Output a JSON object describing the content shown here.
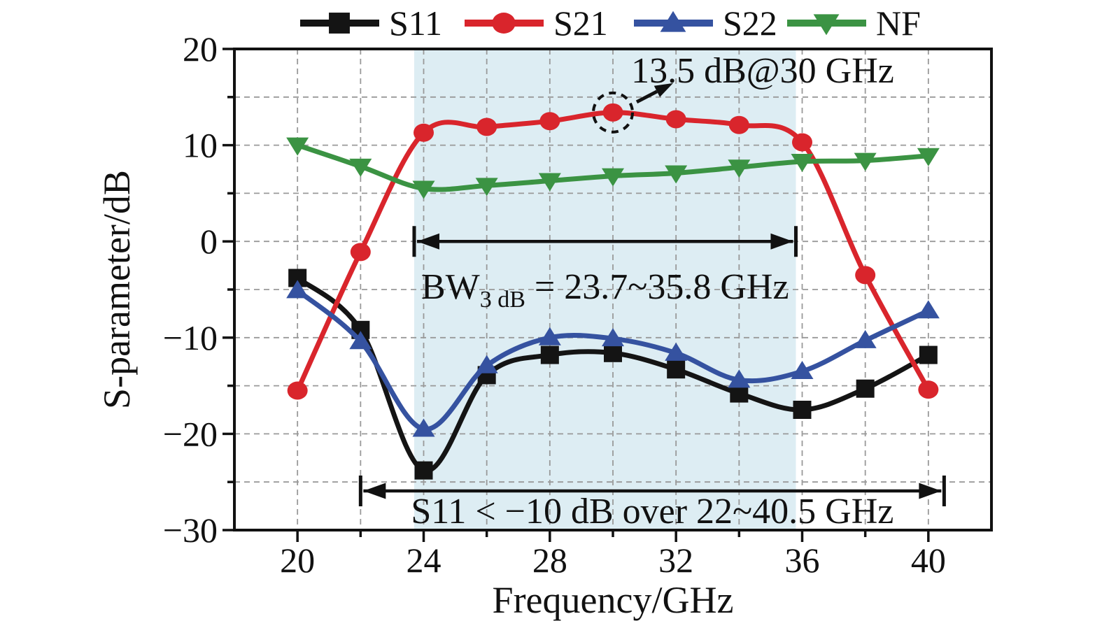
{
  "chart_data": {
    "type": "line",
    "title": "",
    "xlabel": "Frequency/GHz",
    "ylabel": "S-parameter/dB",
    "xlim": [
      18,
      42
    ],
    "ylim": [
      -30,
      20
    ],
    "x": [
      20,
      22,
      24,
      26,
      28,
      30,
      32,
      34,
      36,
      38,
      40
    ],
    "series": [
      {
        "name": "S11",
        "color": "#141414",
        "marker": "square",
        "values": [
          -3.8,
          -9.2,
          -23.8,
          -13.9,
          -11.8,
          -11.6,
          -13.3,
          -15.8,
          -17.5,
          -15.3,
          -11.8
        ]
      },
      {
        "name": "S21",
        "color": "#d9252c",
        "marker": "circle",
        "values": [
          -15.5,
          -1.1,
          11.3,
          11.9,
          12.5,
          13.4,
          12.7,
          12.1,
          10.3,
          -3.5,
          -15.4
        ]
      },
      {
        "name": "S22",
        "color": "#3552a0",
        "marker": "triangle-up",
        "values": [
          -5.1,
          -10.4,
          -19.5,
          -12.9,
          -10.0,
          -10.1,
          -11.6,
          -14.4,
          -13.5,
          -10.3,
          -7.2
        ]
      },
      {
        "name": "NF",
        "color": "#3b9343",
        "marker": "triangle-down",
        "values": [
          10.0,
          7.8,
          5.5,
          5.8,
          6.3,
          6.8,
          7.1,
          7.7,
          8.3,
          8.4,
          8.9
        ]
      }
    ],
    "x_major_ticks": [
      20,
      24,
      28,
      32,
      36,
      40
    ],
    "x_tick_labels": [
      "20",
      "24",
      "28",
      "32",
      "36",
      "40"
    ],
    "x_minor_ticks": [
      22,
      26,
      30,
      34,
      38
    ],
    "y_major_ticks": [
      20,
      10,
      0,
      -10,
      -20,
      -30
    ],
    "y_tick_labels": [
      "20",
      "10",
      "0",
      "−10",
      "−20",
      "−30"
    ],
    "y_minor_ticks": [
      15,
      5,
      -5,
      -15,
      -25
    ],
    "grid": {
      "x_step": 2,
      "y_step": 5,
      "color": "#999999",
      "style": "dashed"
    },
    "highlight_band": {
      "x_from": 23.7,
      "x_to": 35.8,
      "color": "#ddedf3"
    },
    "legend_position": "top",
    "annotations": {
      "peak": {
        "label": "13.5 dB@30 GHz",
        "x": 30,
        "y": 13.4
      },
      "bandwidth": {
        "label_main": "BW",
        "label_sub": "3 dB",
        "label_rest": " = 23.7~35.8 GHz",
        "x_from": 23.7,
        "x_to": 35.8,
        "y_db": 0
      },
      "s11_range": {
        "label": "S11 < −10 dB over 22~40.5 GHz",
        "x_from": 22,
        "x_to": 40.5
      }
    }
  }
}
